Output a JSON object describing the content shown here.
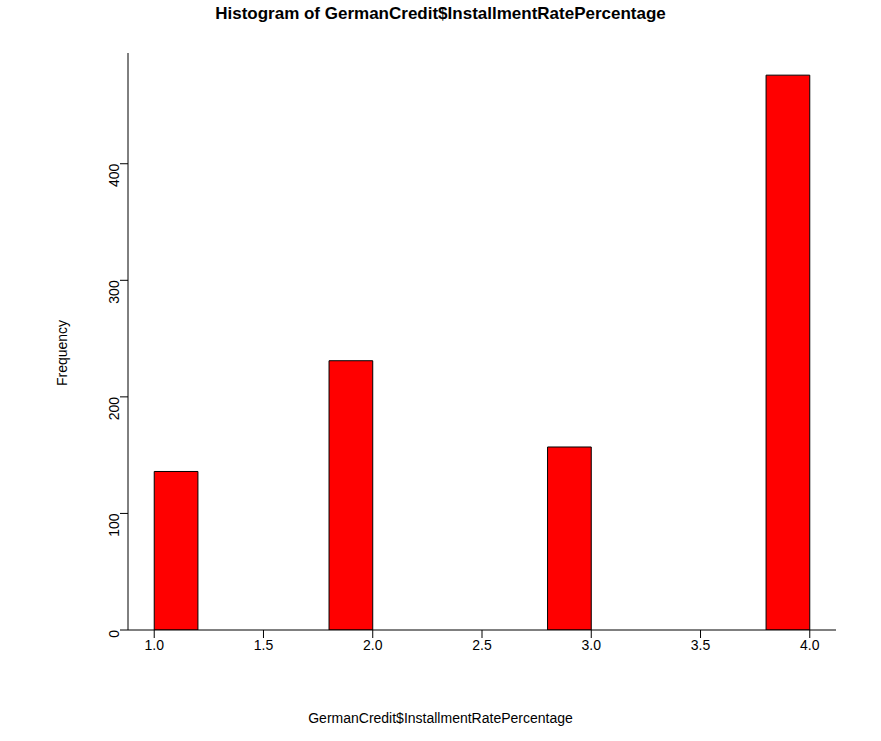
{
  "chart_data": {
    "type": "histogram",
    "title": "Histogram of GermanCredit$InstallmentRatePercentage",
    "x_label": "GermanCredit$InstallmentRatePercentage",
    "y_label": "Frequency",
    "bins": [
      1.0,
      1.2,
      1.4,
      1.6,
      1.8,
      2.0,
      2.2,
      2.4,
      2.6,
      2.8,
      3.0,
      3.2,
      3.4,
      3.6,
      3.8,
      4.0
    ],
    "values": [
      136,
      0,
      0,
      0,
      231,
      0,
      0,
      0,
      0,
      157,
      0,
      0,
      0,
      0,
      476
    ],
    "color": "#ff0000",
    "xlim": [
      0.88,
      4.12
    ],
    "xticks": [
      {
        "value": 1,
        "label": "1.0"
      },
      1.5,
      {
        "value": 2,
        "label": "2.0"
      },
      2.5,
      {
        "value": 3,
        "label": "3.0"
      },
      3.5,
      {
        "value": 4,
        "label": "4.0"
      }
    ],
    "ylim": [
      0,
      495
    ],
    "yticks": [
      0,
      100,
      200,
      300,
      400
    ],
    "grid": false
  }
}
